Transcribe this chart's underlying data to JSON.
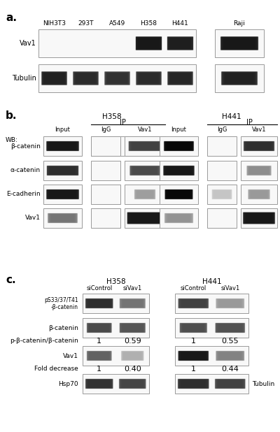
{
  "bg_color": "#ffffff",
  "panel_a": {
    "label": "a.",
    "cell_lines": [
      "NIH3T3",
      "293T",
      "A549",
      "H358",
      "H441"
    ],
    "raji": "Raji",
    "rows": [
      "Vav1",
      "Tubulin"
    ]
  },
  "panel_b": {
    "label": "b.",
    "h358": "H358",
    "h441": "H441",
    "ip": "IP",
    "wb": "WB:",
    "col_labels": [
      "Input",
      "IgG",
      "Vav1"
    ],
    "row_labels": [
      "β-catenin",
      "α-catenin",
      "E-cadherin",
      "Vav1"
    ]
  },
  "panel_c": {
    "label": "c.",
    "h358": "H358",
    "h441": "H441",
    "col_labels": [
      "siControl",
      "siVav1"
    ],
    "row_labels": [
      "pS33/37/T41\n-β-catenin",
      "β-catenin",
      "p-β-catenin/β-catenin",
      "Vav1",
      "Fold decrease",
      "Hsp70"
    ],
    "vals_h358_ratio": [
      "1",
      "0.59"
    ],
    "vals_h441_ratio": [
      "1",
      "0.55"
    ],
    "vals_h358_fold": [
      "1",
      "0.40"
    ],
    "vals_h441_fold": [
      "1",
      "0.44"
    ],
    "tubulin": "Tubulin"
  }
}
